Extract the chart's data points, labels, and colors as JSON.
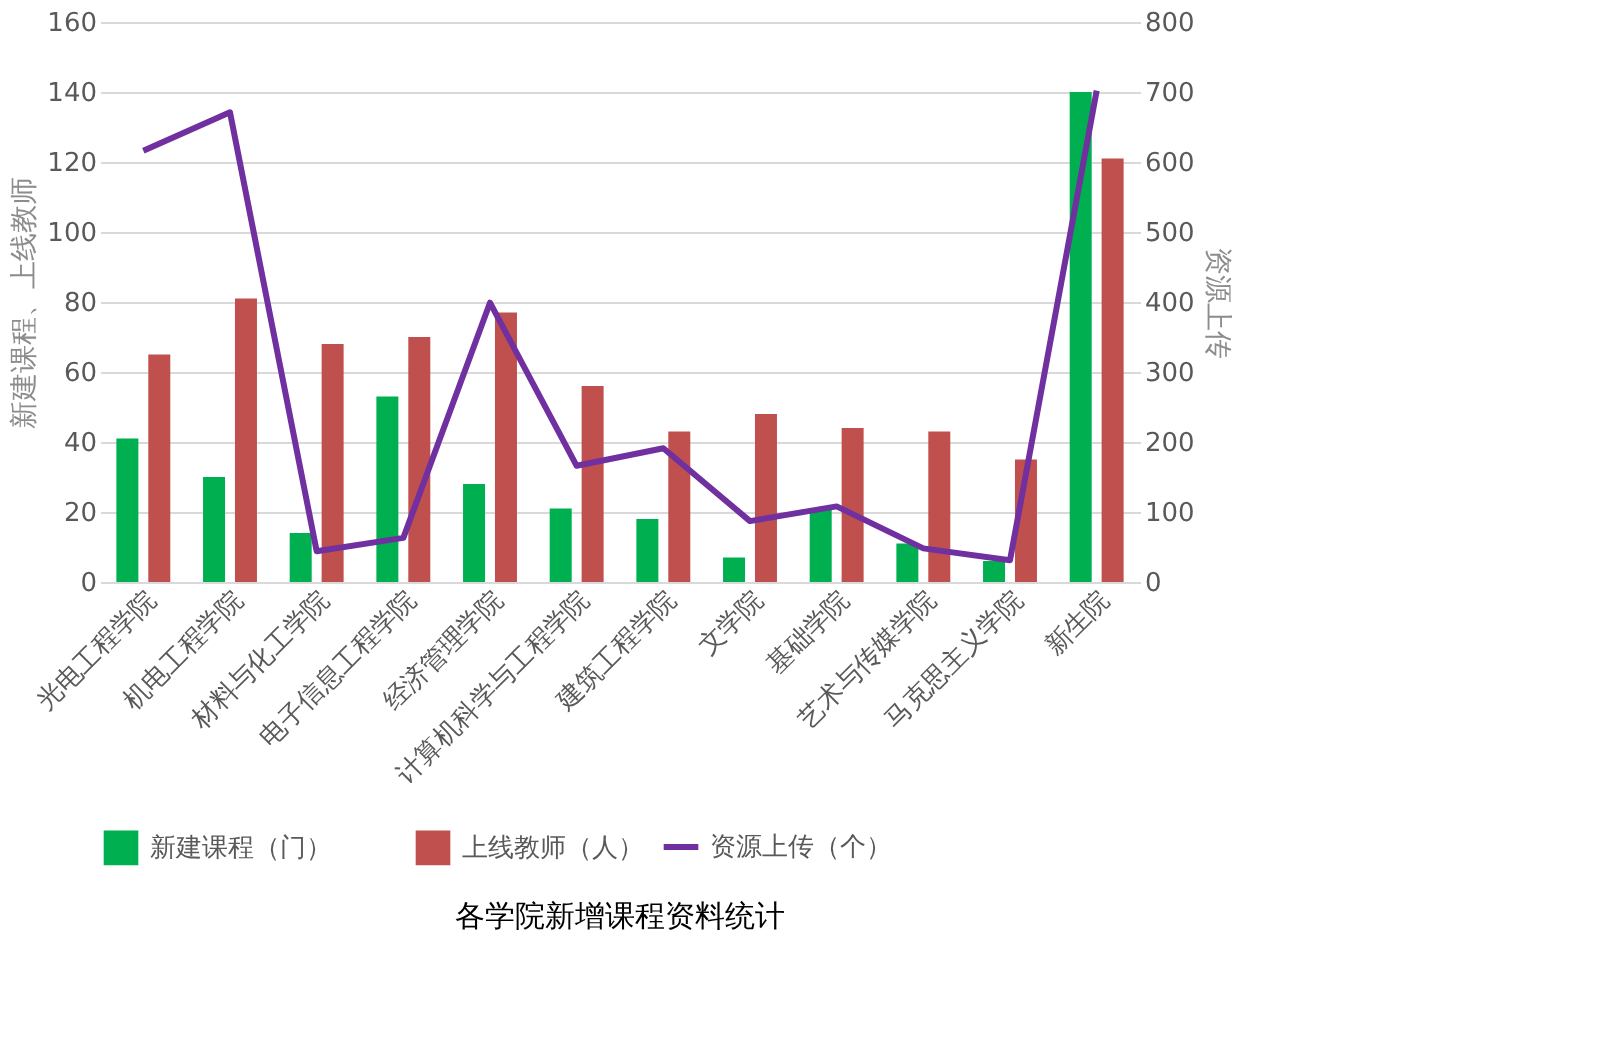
{
  "chart_data": {
    "type": "bar",
    "title": "各学院新增课程资料统计",
    "ylabel": "新建课程、上线教师",
    "y2label": "资源上传",
    "categories": [
      "光电工程学院",
      "机电工程学院",
      "材料与化工学院",
      "电子信息工程学院",
      "经济管理学院",
      "计算机科学与工程学院",
      "建筑工程学院",
      "文学院",
      "基础学院",
      "艺术与传媒学院",
      "马克思主义学院",
      "新生院"
    ],
    "series": [
      {
        "name": "新建课程（门）",
        "color": "#00b050",
        "values": [
          41,
          30,
          14,
          53,
          28,
          21,
          18,
          7,
          21,
          11,
          6,
          140
        ]
      },
      {
        "name": "上线教师（人）",
        "color": "#c0504d",
        "values": [
          65,
          81,
          68,
          70,
          77,
          56,
          43,
          48,
          44,
          43,
          35,
          121
        ]
      },
      {
        "name": "资源上传（个）",
        "color": "#7030a0",
        "type": "line",
        "axis": "y2",
        "values": [
          616,
          671,
          44,
          63,
          399,
          166,
          191,
          87,
          108,
          48,
          31,
          702
        ]
      }
    ],
    "ylim": [
      0,
      160
    ],
    "yticks": [
      0,
      20,
      40,
      60,
      80,
      100,
      120,
      140,
      160
    ],
    "y2lim": [
      0,
      800
    ],
    "y2ticks": [
      0,
      100,
      200,
      300,
      400,
      500,
      600,
      700,
      800
    ],
    "grid": "y",
    "legend": "bottom"
  }
}
